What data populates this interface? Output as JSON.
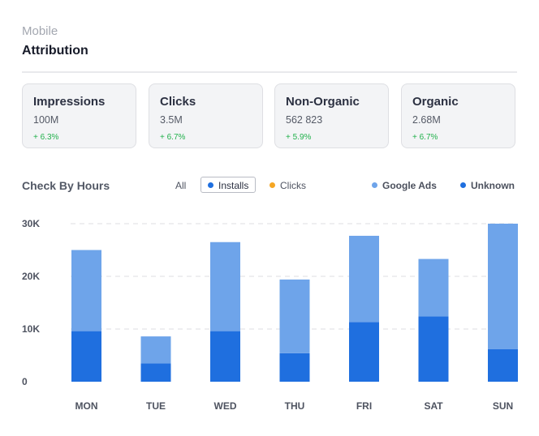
{
  "header": {
    "breadcrumb": "Mobile",
    "title": "Attribution"
  },
  "cards": [
    {
      "label": "Impressions",
      "value": "100M",
      "change": "+ 6.3%"
    },
    {
      "label": "Clicks",
      "value": "3.5M",
      "change": "+ 6.7%"
    },
    {
      "label": "Non-Organic",
      "value": "562 823",
      "change": "+ 5.9%"
    },
    {
      "label": "Organic",
      "value": "2.68M",
      "change": "+ 6.7%"
    }
  ],
  "filters": {
    "all": "All",
    "installs": "Installs",
    "clicks": "Clicks",
    "selected": "Installs"
  },
  "colors": {
    "google_ads": "#6ea4ea",
    "unknown": "#1f6fdf",
    "installs_dot": "#1f6fdf",
    "clicks_dot": "#f5a623",
    "positive_change": "#22b14c",
    "grid": "#dcdde0"
  },
  "chart_data": {
    "type": "bar",
    "stacked": true,
    "title": "Check By Hours",
    "categories": [
      "MON",
      "TUE",
      "WED",
      "THU",
      "FRI",
      "SAT",
      "SUN"
    ],
    "series": [
      {
        "name": "Unknown",
        "values": [
          9600,
          3500,
          9600,
          5400,
          11300,
          12400,
          6200
        ]
      },
      {
        "name": "Google Ads",
        "values": [
          15400,
          5100,
          16900,
          14000,
          16400,
          10900,
          23800
        ]
      }
    ],
    "ylim": [
      0,
      30000
    ],
    "yticks": [
      0,
      10000,
      20000,
      30000
    ],
    "ytick_labels": [
      "0",
      "10K",
      "20K",
      "30K"
    ],
    "grid": true,
    "legend_position": "top-right",
    "legend": [
      "Google Ads",
      "Unknown"
    ]
  }
}
